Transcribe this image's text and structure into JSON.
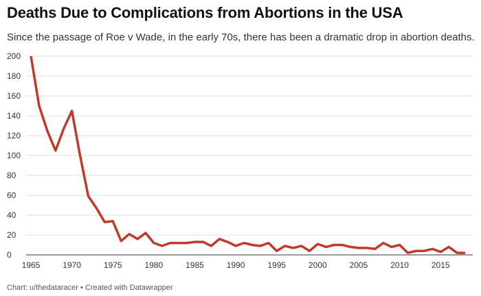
{
  "header": {
    "title": "Deaths Due to Complications from Abortions in the USA",
    "subtitle": "Since the passage of Roe v Wade, in the early 70s, there has been a dramatic drop in abortion deaths."
  },
  "footer": {
    "text": "Chart: u/thedataracer • Created with Datawrapper"
  },
  "chart_data": {
    "type": "line",
    "title": "Deaths Due to Complications from Abortions in the USA",
    "subtitle": "Since the passage of Roe v Wade, in the early 70s, there has been a dramatic drop in abortion deaths.",
    "xlabel": "",
    "ylabel": "",
    "xlim": [
      1965,
      2018
    ],
    "ylim": [
      0,
      200
    ],
    "grid": true,
    "line_color": "#c0392b",
    "x_ticks": [
      "1965",
      "1970",
      "1975",
      "1980",
      "1985",
      "1990",
      "1995",
      "2000",
      "2005",
      "2010",
      "2015"
    ],
    "y_ticks": [
      "0",
      "20",
      "40",
      "60",
      "80",
      "100",
      "120",
      "140",
      "160",
      "180",
      "200"
    ],
    "x": [
      1965,
      1966,
      1967,
      1968,
      1969,
      1970,
      1971,
      1972,
      1973,
      1974,
      1975,
      1976,
      1977,
      1978,
      1979,
      1980,
      1981,
      1982,
      1983,
      1984,
      1985,
      1986,
      1987,
      1988,
      1989,
      1990,
      1991,
      1992,
      1993,
      1994,
      1995,
      1996,
      1997,
      1998,
      1999,
      2000,
      2001,
      2002,
      2003,
      2004,
      2005,
      2006,
      2007,
      2008,
      2009,
      2010,
      2011,
      2012,
      2013,
      2014,
      2015,
      2016,
      2017,
      2018
    ],
    "values": [
      200,
      150,
      125,
      105,
      127,
      145,
      100,
      59,
      47,
      33,
      34,
      14,
      21,
      16,
      22,
      12,
      9,
      12,
      12,
      12,
      13,
      13,
      9,
      16,
      13,
      9,
      12,
      10,
      9,
      12,
      4,
      9,
      7,
      9,
      4,
      11,
      8,
      10,
      10,
      8,
      7,
      7,
      6,
      12,
      8,
      10,
      2,
      4,
      4,
      6,
      3,
      8,
      2,
      2
    ]
  }
}
